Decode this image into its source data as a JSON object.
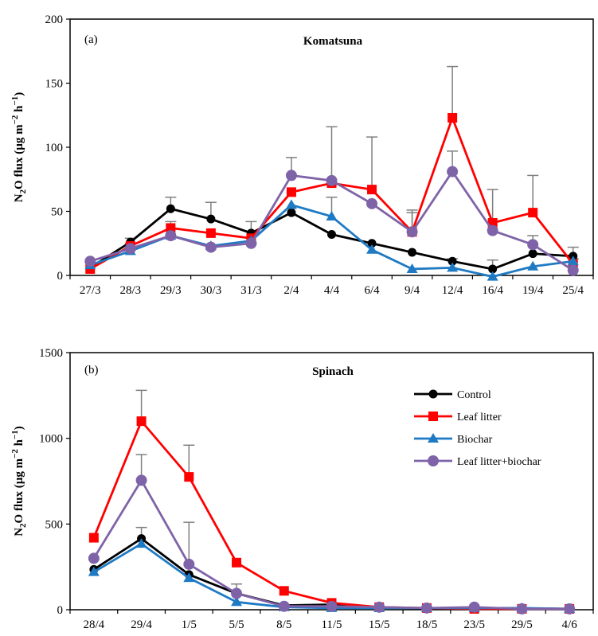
{
  "colors": {
    "Control": "#000000",
    "Leaf litter": "#ff0000",
    "Biochar": "#1f7ac4",
    "Leaf litter+biochar": "#7f63a8",
    "error_bar": "#7f7f7f"
  },
  "chart_data": [
    {
      "type": "line",
      "panel_label": "(a)",
      "title": "Komatsuna",
      "ylabel_parts": [
        "N",
        "2",
        "O flux (µg m",
        "−2",
        " h",
        "−1",
        ")"
      ],
      "ylim": [
        0,
        200
      ],
      "yticks": [
        0,
        50,
        100,
        150,
        200
      ],
      "categories": [
        "27/3",
        "28/3",
        "29/3",
        "30/3",
        "31/3",
        "2/4",
        "4/4",
        "6/4",
        "9/4",
        "12/4",
        "16/4",
        "19/4",
        "25/4"
      ],
      "series": [
        {
          "name": "Control",
          "marker": "circle",
          "values": [
            6,
            26,
            52,
            44,
            33,
            49,
            32,
            25,
            18,
            11,
            5,
            17,
            15
          ],
          "errors": [
            0,
            3,
            9,
            13,
            9,
            0,
            0,
            0,
            0,
            2,
            7,
            14,
            7
          ]
        },
        {
          "name": "Leaf litter",
          "marker": "square",
          "values": [
            5,
            23,
            37,
            33,
            29,
            65,
            72,
            67,
            34,
            123,
            41,
            49,
            9
          ],
          "errors": [
            0,
            2,
            5,
            0,
            0,
            0,
            44,
            41,
            15,
            40,
            26,
            29,
            4
          ]
        },
        {
          "name": "Biochar",
          "marker": "triangle",
          "values": [
            8,
            19,
            31,
            23,
            27,
            55,
            46,
            20,
            5,
            6,
            -1,
            7,
            11
          ],
          "errors": [
            0,
            0,
            0,
            0,
            0,
            0,
            15,
            0,
            0,
            0,
            0,
            0,
            0
          ]
        },
        {
          "name": "Leaf litter+biochar",
          "marker": "circle",
          "values": [
            11,
            21,
            31,
            22,
            25,
            78,
            74,
            56,
            34,
            81,
            35,
            24,
            4
          ],
          "errors": [
            0,
            0,
            0,
            0,
            0,
            14,
            0,
            0,
            17,
            16,
            0,
            0,
            0
          ]
        }
      ],
      "legend": "none",
      "grid": false
    },
    {
      "type": "line",
      "panel_label": "(b)",
      "title": "Spinach",
      "ylabel_parts": [
        "N",
        "2",
        "O flux (µg m",
        "−2",
        " h",
        "−1",
        ")"
      ],
      "ylim": [
        0,
        1500
      ],
      "yticks": [
        0,
        500,
        1000,
        1500
      ],
      "categories": [
        "28/4",
        "29/4",
        "1/5",
        "5/5",
        "8/5",
        "11/5",
        "15/5",
        "18/5",
        "23/5",
        "29/5",
        "4/6"
      ],
      "series": [
        {
          "name": "Control",
          "marker": "circle",
          "values": [
            235,
            415,
            205,
            95,
            25,
            30,
            12,
            8,
            10,
            8,
            5
          ],
          "errors": [
            0,
            65,
            0,
            55,
            0,
            0,
            0,
            0,
            0,
            0,
            0
          ]
        },
        {
          "name": "Leaf litter",
          "marker": "square",
          "values": [
            420,
            1100,
            775,
            275,
            110,
            40,
            15,
            10,
            5,
            5,
            5
          ],
          "errors": [
            0,
            180,
            185,
            0,
            0,
            0,
            0,
            0,
            0,
            0,
            0
          ]
        },
        {
          "name": "Biochar",
          "marker": "triangle",
          "values": [
            220,
            385,
            185,
            45,
            15,
            10,
            10,
            10,
            10,
            10,
            5
          ],
          "errors": [
            0,
            0,
            0,
            0,
            0,
            0,
            0,
            0,
            0,
            0,
            0
          ]
        },
        {
          "name": "Leaf litter+biochar",
          "marker": "circle",
          "values": [
            300,
            755,
            265,
            95,
            20,
            20,
            15,
            10,
            15,
            5,
            5
          ],
          "errors": [
            0,
            150,
            245,
            0,
            0,
            0,
            0,
            0,
            0,
            0,
            0
          ]
        }
      ],
      "legend": "top-right",
      "grid": false
    }
  ]
}
